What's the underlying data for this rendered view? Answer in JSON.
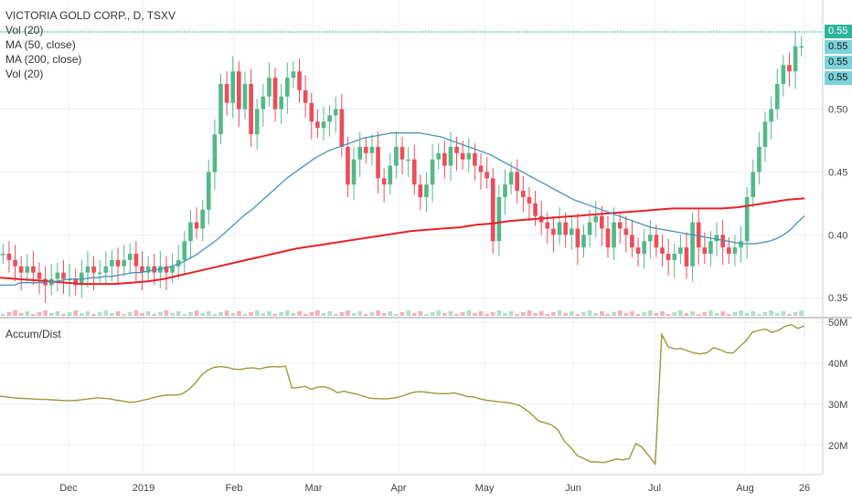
{
  "legend": {
    "title": "VICTORIA GOLD CORP., D, TSXV",
    "vol": "Vol (20)",
    "ma50": "MA (50, close)",
    "ma200": "MA (200, close)",
    "vol2": "Vol (20)",
    "accum": "Accum/Dist"
  },
  "price_tags": [
    "0.55",
    "0.55",
    "0.55",
    "0.55"
  ],
  "colors": {
    "up": "#53b987",
    "down": "#eb4d5c",
    "ma50": "#4a90b8",
    "ma200": "#e8202a",
    "accum": "#9a9a3a",
    "tag": "#7dd3da",
    "tag_hl": "#2bb59a"
  },
  "chart_data": [
    {
      "type": "candlestick",
      "title": "VICTORIA GOLD CORP., D, TSXV",
      "y_ticks": [
        "0.35",
        "0.40",
        "0.45",
        "0.50"
      ],
      "ylim": [
        0.34,
        0.565
      ],
      "x_ticks": [
        "Dec",
        "2019",
        "Feb",
        "Mar",
        "Apr",
        "May",
        "Jun",
        "Jul",
        "Aug",
        "26"
      ],
      "grid": true,
      "close": [
        0.385,
        0.38,
        0.375,
        0.37,
        0.375,
        0.37,
        0.365,
        0.36,
        0.365,
        0.37,
        0.365,
        0.365,
        0.36,
        0.37,
        0.375,
        0.37,
        0.37,
        0.375,
        0.38,
        0.375,
        0.38,
        0.385,
        0.375,
        0.37,
        0.375,
        0.37,
        0.375,
        0.37,
        0.375,
        0.38,
        0.395,
        0.41,
        0.405,
        0.42,
        0.45,
        0.48,
        0.52,
        0.505,
        0.53,
        0.5,
        0.52,
        0.48,
        0.5,
        0.51,
        0.525,
        0.5,
        0.51,
        0.525,
        0.53,
        0.515,
        0.505,
        0.49,
        0.485,
        0.49,
        0.495,
        0.5,
        0.47,
        0.44,
        0.46,
        0.47,
        0.465,
        0.47,
        0.445,
        0.44,
        0.455,
        0.47,
        0.46,
        0.46,
        0.44,
        0.43,
        0.44,
        0.46,
        0.465,
        0.455,
        0.47,
        0.465,
        0.46,
        0.465,
        0.455,
        0.45,
        0.445,
        0.395,
        0.43,
        0.44,
        0.45,
        0.435,
        0.43,
        0.425,
        0.415,
        0.41,
        0.405,
        0.4,
        0.41,
        0.4,
        0.405,
        0.39,
        0.4,
        0.41,
        0.415,
        0.405,
        0.39,
        0.41,
        0.405,
        0.4,
        0.39,
        0.385,
        0.395,
        0.4,
        0.39,
        0.385,
        0.38,
        0.385,
        0.39,
        0.375,
        0.41,
        0.39,
        0.385,
        0.395,
        0.4,
        0.39,
        0.385,
        0.39,
        0.395,
        0.43,
        0.45,
        0.47,
        0.49,
        0.5,
        0.52,
        0.535,
        0.53,
        0.55,
        0.55
      ],
      "ma50": [
        0.36,
        0.36,
        0.36,
        0.362,
        0.362,
        0.362,
        0.362,
        0.363,
        0.363,
        0.364,
        0.365,
        0.365,
        0.365,
        0.366,
        0.366,
        0.367,
        0.367,
        0.368,
        0.369,
        0.37,
        0.37,
        0.371,
        0.372,
        0.373,
        0.374,
        0.376,
        0.378,
        0.381,
        0.384,
        0.388,
        0.392,
        0.396,
        0.401,
        0.406,
        0.411,
        0.416,
        0.42,
        0.425,
        0.43,
        0.435,
        0.44,
        0.445,
        0.449,
        0.453,
        0.457,
        0.461,
        0.464,
        0.467,
        0.469,
        0.471,
        0.473,
        0.475,
        0.477,
        0.478,
        0.479,
        0.48,
        0.481,
        0.481,
        0.481,
        0.481,
        0.481,
        0.48,
        0.479,
        0.478,
        0.476,
        0.474,
        0.472,
        0.47,
        0.468,
        0.466,
        0.464,
        0.461,
        0.458,
        0.455,
        0.452,
        0.449,
        0.446,
        0.443,
        0.44,
        0.437,
        0.434,
        0.431,
        0.428,
        0.426,
        0.424,
        0.422,
        0.42,
        0.418,
        0.416,
        0.414,
        0.412,
        0.41,
        0.408,
        0.406,
        0.405,
        0.404,
        0.403,
        0.402,
        0.401,
        0.4,
        0.399,
        0.398,
        0.397,
        0.396,
        0.395,
        0.394,
        0.393,
        0.393,
        0.393,
        0.394,
        0.395,
        0.397,
        0.4,
        0.404,
        0.41,
        0.415
      ],
      "ma200": [
        0.366,
        0.365,
        0.364,
        0.363,
        0.362,
        0.361,
        0.361,
        0.361,
        0.362,
        0.363,
        0.365,
        0.368,
        0.371,
        0.374,
        0.377,
        0.38,
        0.383,
        0.386,
        0.389,
        0.391,
        0.393,
        0.395,
        0.397,
        0.399,
        0.401,
        0.403,
        0.404,
        0.405,
        0.406,
        0.408,
        0.409,
        0.411,
        0.412,
        0.413,
        0.414,
        0.415,
        0.416,
        0.417,
        0.418,
        0.419,
        0.42,
        0.421,
        0.421,
        0.421,
        0.421,
        0.422,
        0.424,
        0.426,
        0.428,
        0.429
      ],
      "volume_accum_dist": {
        "label": "Accum/Dist",
        "y_ticks": [
          "20M",
          "30M",
          "40M",
          "50M"
        ],
        "ylim": [
          14,
          50
        ],
        "values": [
          32,
          31.8,
          31.6,
          31.5,
          31.4,
          31.3,
          31.2,
          31.2,
          31.1,
          31,
          30.9,
          30.9,
          31,
          31.2,
          31.4,
          31.6,
          31.5,
          31.3,
          31,
          30.8,
          30.5,
          30.6,
          31,
          31.3,
          31.8,
          32.1,
          32.3,
          32.2,
          32.5,
          33.5,
          35,
          37,
          38.3,
          39,
          39.2,
          39,
          38.6,
          38.5,
          38.8,
          38.9,
          38.6,
          39,
          39.2,
          39.1,
          39.3,
          34,
          34.1,
          34.4,
          33.7,
          34.2,
          34.3,
          33.8,
          32.8,
          33.2,
          32.8,
          32.5,
          32,
          31.5,
          31.4,
          31.3,
          31.4,
          31.6,
          32,
          32.6,
          33,
          33.1,
          32.9,
          32.7,
          32.6,
          32.6,
          32.8,
          32.4,
          31.9,
          31.8,
          31.3,
          31,
          30.8,
          30.6,
          30.5,
          30.2,
          29.8,
          28.8,
          27.5,
          26,
          25.5,
          25,
          23.8,
          21,
          19.5,
          17.5,
          16.8,
          16,
          16,
          15.8,
          16.2,
          16.7,
          16.5,
          16.8,
          20.5,
          19.5,
          17.5,
          15.5,
          47,
          44,
          43.5,
          43.6,
          43,
          42.5,
          42.3,
          42.6,
          43.8,
          43.3,
          42.6,
          42.5,
          44,
          45.5,
          47.6,
          48,
          48.3,
          47.5,
          48,
          49,
          49.4,
          48.5,
          49.1
        ]
      }
    }
  ]
}
